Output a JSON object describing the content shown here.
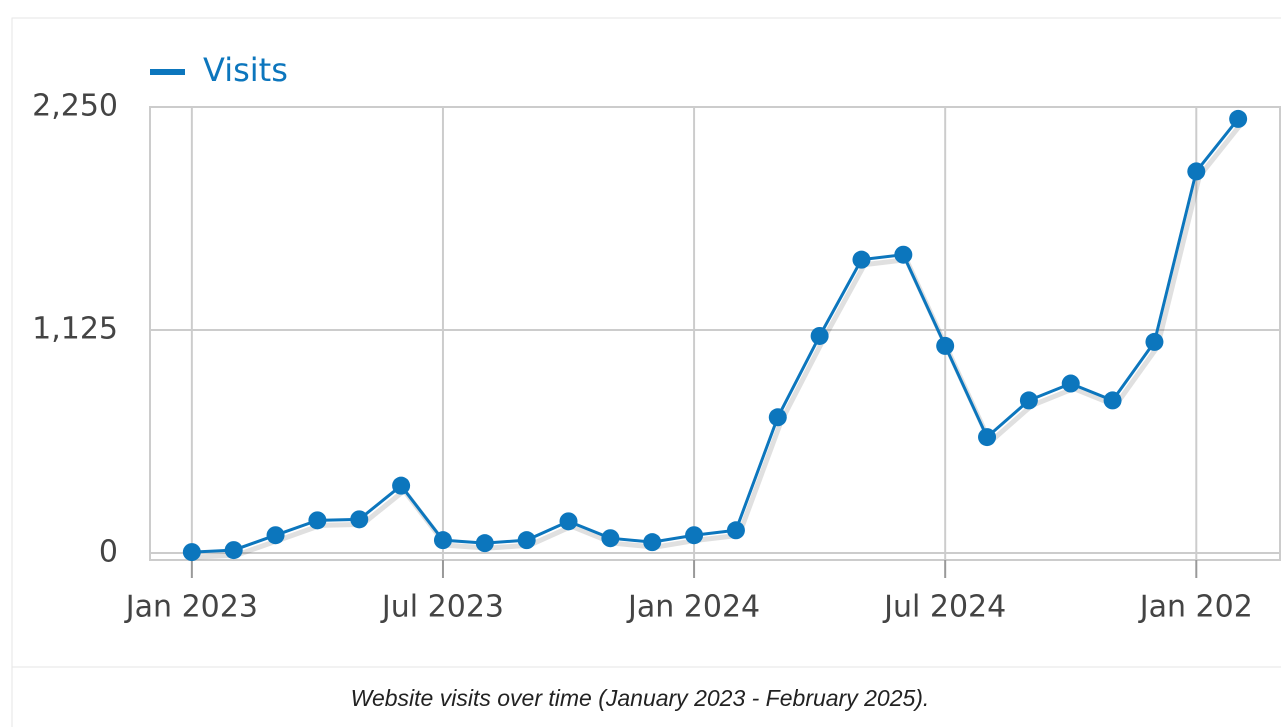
{
  "chart_data": {
    "type": "line",
    "caption": "Website visits over time (January 2023 - February 2025).",
    "x": [
      "2023-01",
      "2023-02",
      "2023-03",
      "2023-04",
      "2023-05",
      "2023-06",
      "2023-07",
      "2023-08",
      "2023-09",
      "2023-10",
      "2023-11",
      "2023-12",
      "2024-01",
      "2024-02",
      "2024-03",
      "2024-04",
      "2024-05",
      "2024-06",
      "2024-07",
      "2024-08",
      "2024-09",
      "2024-10",
      "2024-11",
      "2024-12",
      "2025-01",
      "2025-02"
    ],
    "series": [
      {
        "name": "Visits",
        "color": "#0c76bd",
        "values": [
          5,
          15,
          90,
          165,
          170,
          340,
          65,
          50,
          65,
          160,
          75,
          55,
          90,
          115,
          685,
          1095,
          1480,
          1505,
          1045,
          585,
          770,
          855,
          770,
          1065,
          1925,
          2190
        ]
      }
    ],
    "xlim": [
      "2022-12",
      "2025-03"
    ],
    "xticks": [
      {
        "value": "2023-01",
        "label": "Jan 2023"
      },
      {
        "value": "2023-07",
        "label": "Jul 2023"
      },
      {
        "value": "2024-01",
        "label": "Jan 2024"
      },
      {
        "value": "2024-07",
        "label": "Jul 2024"
      },
      {
        "value": "2025-01",
        "label": "Jan 202"
      }
    ],
    "ylim": [
      -35,
      2250
    ],
    "yticks": [
      0,
      {
        "value": 1125,
        "label": "1,125"
      },
      {
        "value": 2250,
        "label": "2,250"
      }
    ],
    "grid": true,
    "legend": "top-left"
  }
}
